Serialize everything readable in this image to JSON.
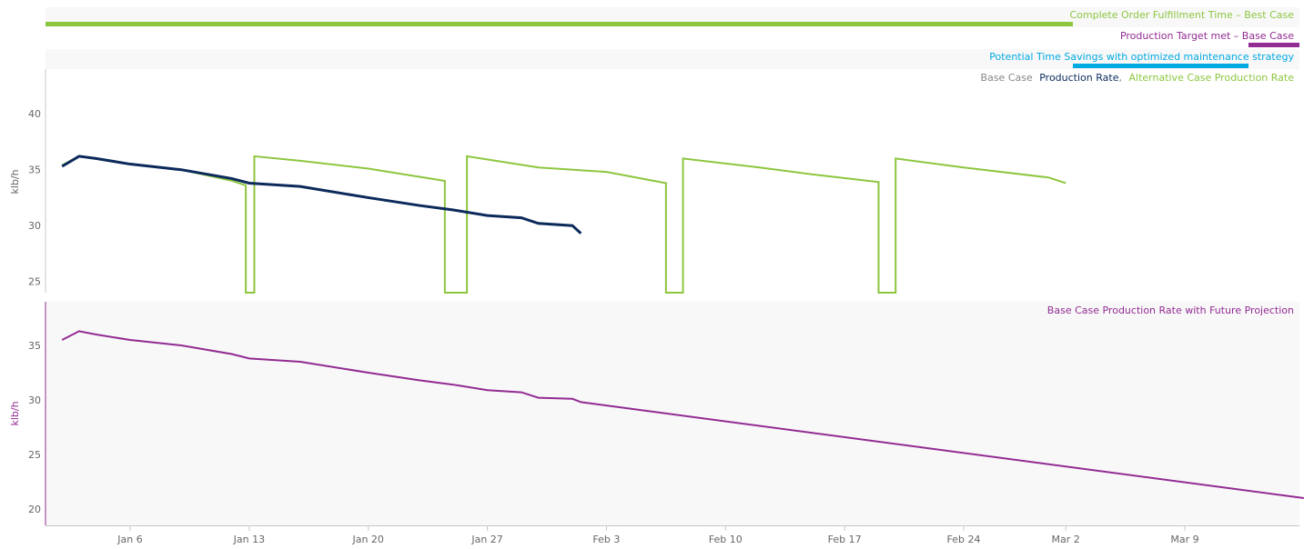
{
  "colors": {
    "alt_green": "#8dc63f",
    "base_navy": "#0b2a5b",
    "purple": "#922b92",
    "cyan": "#00a9e0",
    "grey_text": "#888888",
    "panel_bg": "#f8f8f9"
  },
  "timeline": {
    "row1_label": "Complete Order Fulfillment Time – Best Case",
    "row2_label": "Production Target met – Base Case",
    "row3_label": "Potential Time Savings with optimized maintenance strategy"
  },
  "top_panel": {
    "legend_prefix": "Base Case",
    "legend_base": "Production Rate",
    "legend_sep": ",",
    "legend_alt": "Alternative Case Production Rate",
    "ylabel": "klb/h"
  },
  "bottom_panel": {
    "legend": "Base Case Production Rate with Future Projection",
    "ylabel": "klb/h"
  },
  "chart_data": [
    {
      "type": "timeline",
      "bars": [
        {
          "label": "Complete Order Fulfillment Time – Best Case",
          "start": "Jan 2",
          "end": "Mar 2"
        },
        {
          "label": "Production Target met – Base Case",
          "start": "Mar 12",
          "end": "Mar 15"
        },
        {
          "label": "Potential Time Savings with optimized maintenance strategy",
          "start": "Mar 2",
          "end": "Mar 12"
        }
      ]
    },
    {
      "type": "line",
      "ylabel": "klb/h",
      "ylim": [
        24,
        44
      ],
      "yticks": [
        25,
        30,
        35,
        40
      ],
      "x_ticks": [
        "Jan 6",
        "Jan 13",
        "Jan 20",
        "Jan 27",
        "Feb 3",
        "Feb 10",
        "Feb 17",
        "Feb 24",
        "Mar 2",
        "Mar 9"
      ],
      "series": [
        {
          "name": "Production Rate",
          "points": [
            [
              "Jan 2",
              35.3
            ],
            [
              "Jan 3",
              36.2
            ],
            [
              "Jan 4",
              36.0
            ],
            [
              "Jan 6",
              35.5
            ],
            [
              "Jan 9",
              35.0
            ],
            [
              "Jan 12",
              34.2
            ],
            [
              "Jan 13",
              33.8
            ],
            [
              "Jan 16",
              33.5
            ],
            [
              "Jan 20",
              32.5
            ],
            [
              "Jan 23",
              31.8
            ],
            [
              "Jan 25",
              31.4
            ],
            [
              "Jan 27",
              30.9
            ],
            [
              "Jan 29",
              30.7
            ],
            [
              "Jan 30",
              30.2
            ],
            [
              "Feb 1",
              30.0
            ],
            [
              "Feb 1.5",
              29.3
            ]
          ]
        },
        {
          "name": "Alternative Case Production Rate",
          "points": [
            [
              "Jan 2",
              35.4
            ],
            [
              "Jan 3",
              36.2
            ],
            [
              "Jan 6",
              35.5
            ],
            [
              "Jan 9",
              35.0
            ],
            [
              "Jan 12",
              34.0
            ],
            [
              "Jan 12.8",
              33.6
            ],
            [
              "Jan 13.3",
              36.2
            ],
            [
              "Jan 16",
              35.8
            ],
            [
              "Jan 20",
              35.1
            ],
            [
              "Jan 24.5",
              34.0
            ],
            [
              "Jan 25.8",
              36.2
            ],
            [
              "Jan 30",
              35.2
            ],
            [
              "Feb 3",
              34.8
            ],
            [
              "Feb 6.5",
              33.8
            ],
            [
              "Feb 7.5",
              36.0
            ],
            [
              "Feb 12",
              35.2
            ],
            [
              "Feb 15",
              34.6
            ],
            [
              "Feb 19",
              33.9
            ],
            [
              "Feb 20",
              36.0
            ],
            [
              "Feb 24",
              35.2
            ],
            [
              "Mar 1",
              34.3
            ],
            [
              "Mar 2",
              33.8
            ]
          ]
        }
      ]
    },
    {
      "type": "line",
      "ylabel": "klb/h",
      "ylim": [
        18.5,
        39
      ],
      "yticks": [
        20,
        25,
        30,
        35
      ],
      "x_ticks": [
        "Jan 6",
        "Jan 13",
        "Jan 20",
        "Jan 27",
        "Feb 3",
        "Feb 10",
        "Feb 17",
        "Feb 24",
        "Mar 2",
        "Mar 9"
      ],
      "series": [
        {
          "name": "Base Case Production Rate with Future Projection",
          "points": [
            [
              "Jan 2",
              35.5
            ],
            [
              "Jan 3",
              36.3
            ],
            [
              "Jan 4",
              36.0
            ],
            [
              "Jan 6",
              35.5
            ],
            [
              "Jan 9",
              35.0
            ],
            [
              "Jan 12",
              34.2
            ],
            [
              "Jan 13",
              33.8
            ],
            [
              "Jan 16",
              33.5
            ],
            [
              "Jan 20",
              32.5
            ],
            [
              "Jan 23",
              31.8
            ],
            [
              "Jan 25",
              31.4
            ],
            [
              "Jan 27",
              30.9
            ],
            [
              "Jan 29",
              30.7
            ],
            [
              "Jan 30",
              30.2
            ],
            [
              "Feb 1",
              30.1
            ],
            [
              "Feb 1.5",
              29.8
            ],
            [
              "Mar 16",
              21.0
            ]
          ]
        }
      ]
    }
  ]
}
